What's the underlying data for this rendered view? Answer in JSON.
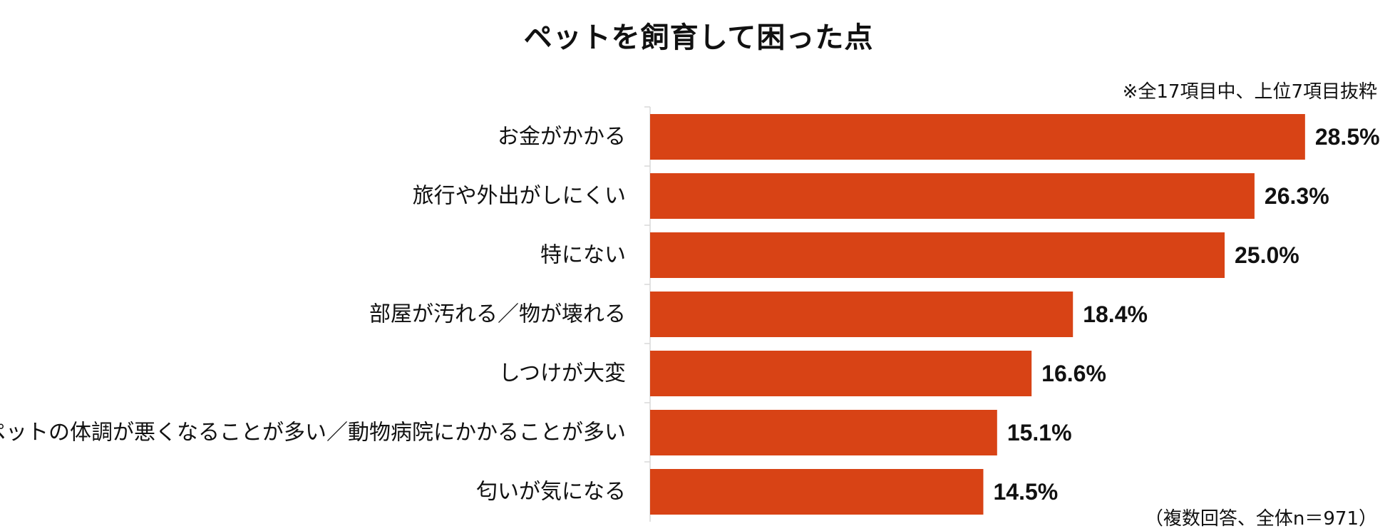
{
  "chart_data": {
    "type": "bar",
    "orientation": "horizontal",
    "title": "ペットを飼育して困った点",
    "note_top": "※全17項目中、上位7項目抜粋",
    "note_bottom": "（複数回答、全体n＝971）",
    "categories": [
      "お金がかかる",
      "旅行や外出がしにくい",
      "特にない",
      "部屋が汚れる／物が壊れる",
      "しつけが大変",
      "ペットの体調が悪くなることが多い／動物病院にかかることが多い",
      "匂いが気になる"
    ],
    "values": [
      28.5,
      26.3,
      25.0,
      18.4,
      16.6,
      15.1,
      14.5
    ],
    "value_labels": [
      "28.5%",
      "26.3%",
      "25.0%",
      "18.4%",
      "16.6%",
      "15.1%",
      "14.5%"
    ],
    "unit": "%",
    "bar_color": "#D84315",
    "grid": false,
    "legend": "none"
  }
}
